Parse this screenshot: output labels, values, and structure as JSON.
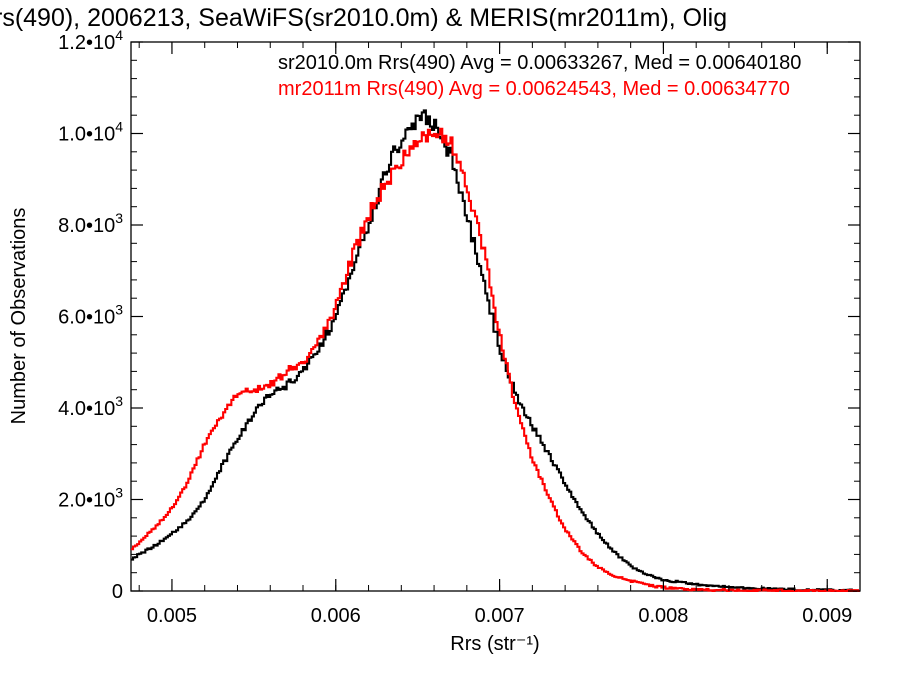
{
  "chart_data": {
    "type": "line",
    "title": "rs(490), 2006213, SeaWiFS(sr2010.0m) & MERIS(mr2011m), Olig",
    "xlabel": "Rrs (str⁻¹)",
    "ylabel": "Number of Observations",
    "xlim": [
      0.00475,
      0.0092
    ],
    "ylim": [
      0,
      12000
    ],
    "xticks": [
      {
        "value": 0.005,
        "label": "0.005"
      },
      {
        "value": 0.006,
        "label": "0.006"
      },
      {
        "value": 0.007,
        "label": "0.007"
      },
      {
        "value": 0.008,
        "label": "0.008"
      },
      {
        "value": 0.009,
        "label": "0.009"
      }
    ],
    "yticks": [
      {
        "value": 0,
        "mantissa": "0",
        "exp": ""
      },
      {
        "value": 2000,
        "mantissa": "2.0•10",
        "exp": "3"
      },
      {
        "value": 4000,
        "mantissa": "4.0•10",
        "exp": "3"
      },
      {
        "value": 6000,
        "mantissa": "6.0•10",
        "exp": "3"
      },
      {
        "value": 8000,
        "mantissa": "8.0•10",
        "exp": "3"
      },
      {
        "value": 10000,
        "mantissa": "1.0•10",
        "exp": "4"
      },
      {
        "value": 12000,
        "mantissa": "1.2•10",
        "exp": "4"
      }
    ],
    "grid": false,
    "legend_position": "top",
    "series": [
      {
        "name": "sr2010.0m Rrs(490) Avg = 0.00633267, Med = 0.00640180",
        "color": "#000000",
        "x": [
          0.00475,
          0.0049,
          0.005,
          0.0051,
          0.0052,
          0.0053,
          0.0054,
          0.0055,
          0.0056,
          0.0057,
          0.0058,
          0.0059,
          0.006,
          0.0061,
          0.0062,
          0.0063,
          0.0064,
          0.0065,
          0.00655,
          0.0066,
          0.00665,
          0.0067,
          0.0068,
          0.0069,
          0.007,
          0.0071,
          0.0072,
          0.0073,
          0.0074,
          0.0075,
          0.0076,
          0.0077,
          0.0078,
          0.0079,
          0.008,
          0.0082,
          0.0084,
          0.0086,
          0.0088,
          0.009,
          0.0092
        ],
        "y": [
          700,
          1000,
          1250,
          1550,
          2000,
          2700,
          3300,
          3900,
          4300,
          4500,
          4800,
          5300,
          6000,
          7000,
          8000,
          9100,
          9900,
          10300,
          10400,
          10200,
          10000,
          9500,
          8200,
          6800,
          5300,
          4300,
          3600,
          3000,
          2350,
          1750,
          1250,
          850,
          550,
          350,
          250,
          140,
          90,
          50,
          30,
          15,
          10
        ]
      },
      {
        "name": "mr2011m Rrs(490) Avg = 0.00624543, Med = 0.00634770",
        "color": "#ff0000",
        "x": [
          0.00475,
          0.0049,
          0.005,
          0.0051,
          0.0052,
          0.0053,
          0.0054,
          0.0055,
          0.0056,
          0.0057,
          0.0058,
          0.0059,
          0.006,
          0.0061,
          0.0062,
          0.0063,
          0.0064,
          0.0065,
          0.00655,
          0.0066,
          0.00665,
          0.0067,
          0.0068,
          0.0069,
          0.007,
          0.0071,
          0.0072,
          0.0073,
          0.0074,
          0.0075,
          0.0076,
          0.0077,
          0.0078,
          0.0079,
          0.008,
          0.0082,
          0.0084,
          0.0086,
          0.0088,
          0.009,
          0.0092
        ],
        "y": [
          900,
          1400,
          1800,
          2400,
          3200,
          3800,
          4300,
          4400,
          4500,
          4800,
          5000,
          5500,
          6200,
          7300,
          8200,
          8900,
          9400,
          9800,
          10000,
          10050,
          10000,
          9800,
          8900,
          7500,
          5600,
          4000,
          2900,
          2050,
          1350,
          850,
          520,
          340,
          220,
          130,
          80,
          30,
          15,
          8,
          4,
          2,
          1
        ]
      }
    ]
  }
}
